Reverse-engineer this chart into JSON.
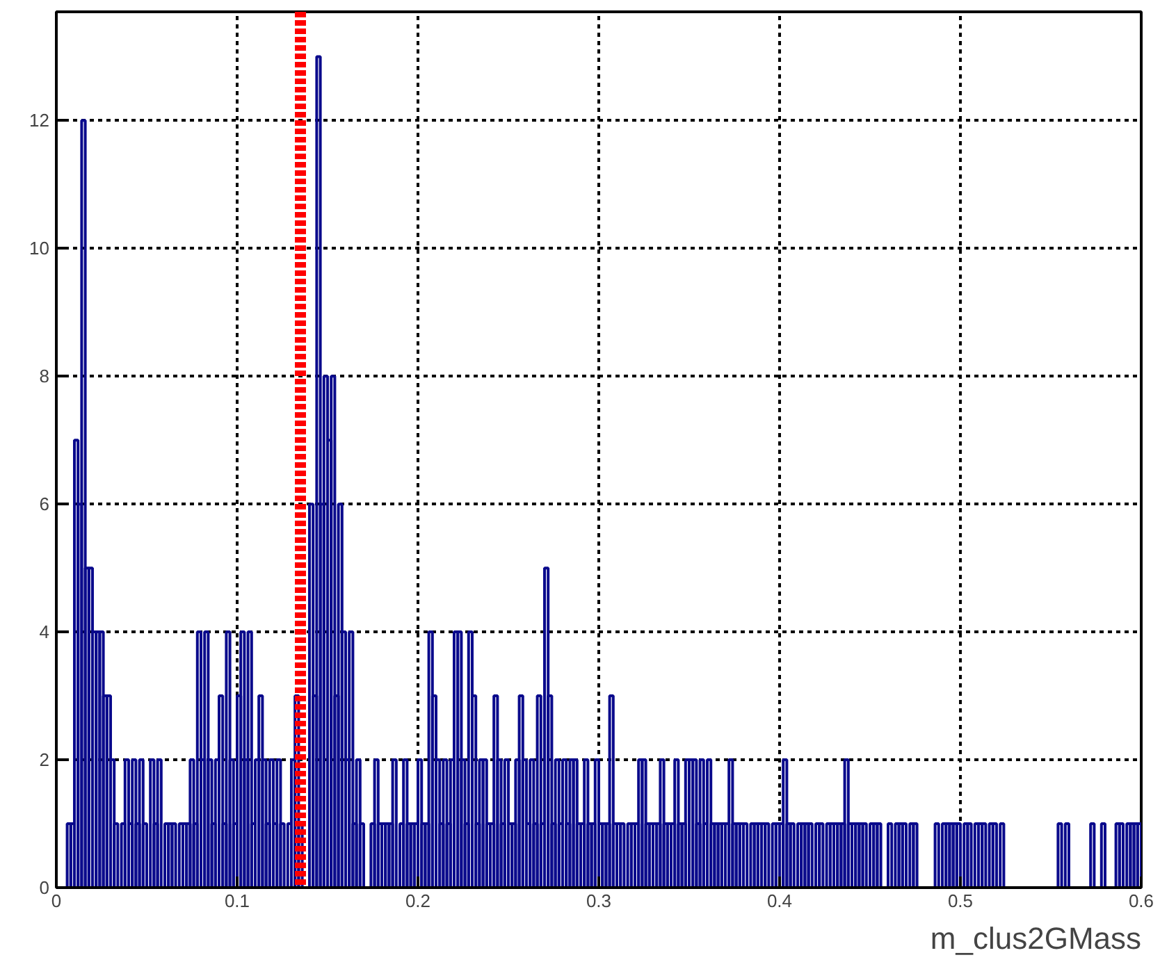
{
  "chart_data": {
    "type": "histogram",
    "xlabel": "m_clus2GMass",
    "color": "#0a0a8c",
    "bins": [
      0,
      0.002,
      0.004,
      0.006,
      0.008,
      0.01,
      0.012,
      0.014,
      0.016,
      0.018,
      0.02,
      0.022,
      0.024,
      0.026,
      0.028,
      0.03,
      0.032,
      0.034,
      0.036,
      0.038,
      0.04,
      0.042,
      0.044,
      0.046,
      0.048,
      0.05,
      0.052,
      0.054,
      0.056,
      0.058,
      0.06,
      0.062,
      0.064,
      0.066,
      0.068,
      0.07,
      0.072,
      0.074,
      0.076,
      0.078,
      0.08,
      0.082,
      0.084,
      0.086,
      0.088,
      0.09,
      0.092,
      0.094,
      0.096,
      0.098,
      0.1,
      0.102,
      0.104,
      0.106,
      0.108,
      0.11,
      0.112,
      0.114,
      0.116,
      0.118,
      0.12,
      0.122,
      0.124,
      0.126,
      0.128,
      0.13,
      0.132,
      0.134,
      0.136,
      0.138,
      0.14,
      0.142,
      0.144,
      0.146,
      0.148,
      0.15,
      0.152,
      0.154,
      0.156,
      0.158,
      0.16,
      0.162,
      0.164,
      0.166,
      0.168,
      0.17,
      0.172,
      0.174,
      0.176,
      0.178,
      0.18,
      0.182,
      0.184,
      0.186,
      0.188,
      0.19,
      0.192,
      0.194,
      0.196,
      0.198,
      0.2,
      0.202,
      0.204,
      0.206,
      0.208,
      0.21,
      0.212,
      0.214,
      0.216,
      0.218,
      0.22,
      0.222,
      0.224,
      0.226,
      0.228,
      0.23,
      0.232,
      0.234,
      0.236,
      0.238,
      0.24,
      0.242,
      0.244,
      0.246,
      0.248,
      0.25,
      0.252,
      0.254,
      0.256,
      0.258,
      0.26,
      0.262,
      0.264,
      0.266,
      0.268,
      0.27,
      0.272,
      0.274,
      0.276,
      0.278,
      0.28,
      0.282,
      0.284,
      0.286,
      0.288,
      0.29,
      0.292,
      0.294,
      0.296,
      0.298,
      0.3,
      0.302,
      0.304,
      0.306,
      0.308,
      0.31,
      0.312,
      0.314,
      0.316,
      0.318,
      0.32,
      0.322,
      0.324,
      0.326,
      0.328,
      0.33,
      0.332,
      0.334,
      0.336,
      0.338,
      0.34,
      0.342,
      0.344,
      0.346,
      0.348,
      0.35,
      0.352,
      0.354,
      0.356,
      0.358,
      0.36,
      0.362,
      0.364,
      0.366,
      0.368,
      0.37,
      0.372,
      0.374,
      0.376,
      0.378,
      0.38,
      0.382,
      0.384,
      0.386,
      0.388,
      0.39,
      0.392,
      0.394,
      0.396,
      0.398,
      0.4,
      0.402,
      0.404,
      0.406,
      0.408,
      0.41,
      0.412,
      0.414,
      0.416,
      0.418,
      0.42,
      0.422,
      0.424,
      0.426,
      0.428,
      0.43,
      0.432,
      0.434,
      0.436,
      0.438,
      0.44,
      0.442,
      0.444,
      0.446,
      0.448,
      0.45,
      0.452,
      0.454,
      0.456,
      0.458,
      0.46,
      0.462,
      0.464,
      0.466,
      0.468,
      0.47,
      0.472,
      0.474,
      0.476,
      0.478,
      0.48,
      0.482,
      0.484,
      0.486,
      0.488,
      0.49,
      0.492,
      0.494,
      0.496,
      0.498,
      0.5,
      0.502,
      0.504,
      0.506,
      0.508,
      0.51,
      0.512,
      0.514,
      0.516,
      0.518,
      0.52,
      0.522,
      0.524,
      0.526,
      0.528,
      0.53,
      0.532,
      0.534,
      0.536,
      0.538,
      0.54,
      0.542,
      0.544,
      0.546,
      0.548,
      0.55,
      0.552,
      0.554,
      0.556,
      0.558,
      0.56,
      0.562,
      0.564,
      0.566,
      0.568,
      0.57,
      0.572,
      0.574,
      0.576,
      0.578,
      0.58,
      0.582,
      0.584,
      0.586,
      0.588,
      0.59,
      0.592,
      0.594,
      0.596,
      0.598,
      0.6
    ],
    "values": [
      0,
      0,
      0,
      1,
      1,
      7,
      6,
      12,
      5,
      5,
      4,
      4,
      4,
      3,
      3,
      2,
      1,
      0,
      1,
      2,
      1,
      2,
      1,
      2,
      1,
      0,
      2,
      1,
      2,
      0,
      1,
      1,
      1,
      0,
      1,
      1,
      1,
      2,
      1,
      4,
      2,
      4,
      2,
      1,
      2,
      3,
      1,
      4,
      2,
      1,
      3,
      4,
      2,
      4,
      1,
      2,
      3,
      2,
      1,
      2,
      1,
      2,
      1,
      0,
      1,
      2,
      3,
      1,
      0,
      0,
      6,
      3,
      13,
      6,
      8,
      7,
      8,
      3,
      6,
      4,
      2,
      4,
      1,
      2,
      1,
      0,
      0,
      1,
      2,
      1,
      1,
      1,
      1,
      2,
      0,
      1,
      2,
      1,
      1,
      1,
      2,
      1,
      1,
      4,
      3,
      2,
      1,
      2,
      1,
      2,
      4,
      4,
      2,
      1,
      4,
      3,
      1,
      2,
      2,
      1,
      1,
      3,
      2,
      1,
      2,
      1,
      1,
      2,
      3,
      2,
      1,
      2,
      1,
      3,
      1,
      5,
      3,
      1,
      2,
      1,
      2,
      1,
      2,
      2,
      1,
      1,
      2,
      1,
      1,
      2,
      1,
      1,
      1,
      3,
      1,
      1,
      1,
      0,
      1,
      1,
      1,
      2,
      2,
      1,
      1,
      1,
      1,
      2,
      1,
      1,
      1,
      2,
      1,
      1,
      2,
      2,
      2,
      1,
      2,
      1,
      2,
      1,
      1,
      1,
      1,
      1,
      2,
      1,
      1,
      1,
      1,
      0,
      1,
      1,
      1,
      1,
      1,
      0,
      1,
      1,
      1,
      2,
      1,
      1,
      0,
      1,
      1,
      1,
      1,
      0,
      1,
      1,
      0,
      1,
      1,
      1,
      1,
      1,
      2,
      1,
      1,
      1,
      1,
      1,
      0,
      1,
      1,
      1,
      0,
      0,
      1,
      0,
      1,
      1,
      1,
      0,
      1,
      1,
      0,
      0,
      0,
      0,
      0,
      1,
      0,
      1,
      1,
      1,
      1,
      1,
      0,
      1,
      1,
      0,
      1,
      1,
      1,
      0,
      1,
      1,
      0,
      1,
      0,
      0,
      0,
      0,
      0,
      0,
      0,
      0,
      0,
      0,
      0,
      0,
      0,
      0,
      0,
      1,
      0,
      1,
      0,
      0,
      0,
      0,
      0,
      0,
      1,
      0,
      0,
      1,
      0,
      0,
      0,
      1,
      1,
      0,
      1,
      1,
      1,
      1
    ],
    "xlim": [
      0,
      0.6
    ],
    "xticks": [
      0,
      0.1,
      0.2,
      0.3,
      0.4,
      0.5,
      0.6
    ],
    "ylim": [
      0,
      13.7
    ],
    "yticks": [
      0,
      2,
      4,
      6,
      8,
      10,
      12
    ],
    "grid": true,
    "ref_lines": [
      {
        "axis": "x",
        "value": 0.135,
        "label": null,
        "color": "#ff0000",
        "line_style": "dashed"
      }
    ]
  }
}
